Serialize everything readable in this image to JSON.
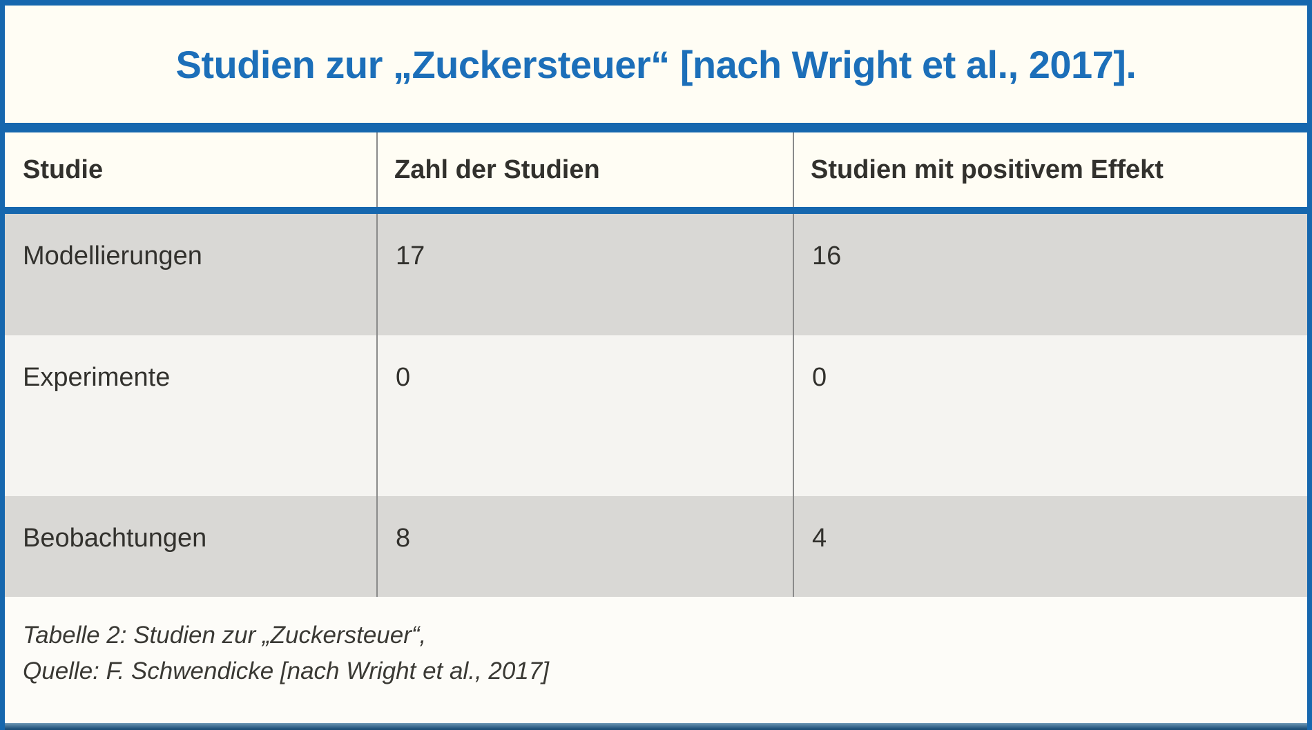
{
  "figure": {
    "title": "Studien zur „Zuckersteuer“ [nach Wright et al., 2017]."
  },
  "table": {
    "columns": [
      {
        "label": "Studie"
      },
      {
        "label": "Zahl der Studien"
      },
      {
        "label": "Studien mit positivem Effekt"
      }
    ],
    "rows": [
      {
        "study": "Modellierungen",
        "num_studies": "17",
        "positive_studies": "16"
      },
      {
        "study": "Experimente",
        "num_studies": "0",
        "positive_studies": "0"
      },
      {
        "study": "Beobachtungen",
        "num_studies": "8",
        "positive_studies": "4"
      }
    ]
  },
  "caption": {
    "line1": "Tabelle 2: Studien zur „Zuckersteuer“,",
    "line2": "Quelle: F. Schwendicke [nach Wright et al., 2017]"
  },
  "chart_data": {
    "type": "table",
    "title": "Studien zur „Zuckersteuer“ [nach Wright et al., 2017].",
    "columns": [
      "Studie",
      "Zahl der Studien",
      "Studien mit positivem Effekt"
    ],
    "rows": [
      [
        "Modellierungen",
        17,
        16
      ],
      [
        "Experimente",
        0,
        0
      ],
      [
        "Beobachtungen",
        8,
        4
      ]
    ],
    "source": "Tabelle 2: Studien zur „Zuckersteuer“, Quelle: F. Schwendicke [nach Wright et al., 2017]"
  },
  "colors": {
    "accent_blue": "#1667ae",
    "title_blue": "#1c6fb9",
    "row_gray": "#d9d8d5",
    "row_light": "#f5f4f1",
    "background_cream": "#fffdf4",
    "text_dark": "#32312d",
    "caption_gray": "#3a3934",
    "divider_gray": "#8a8a8a",
    "bottom_bar_dark": "#1e4f78",
    "bottom_bar_light": "#6d97b5"
  }
}
